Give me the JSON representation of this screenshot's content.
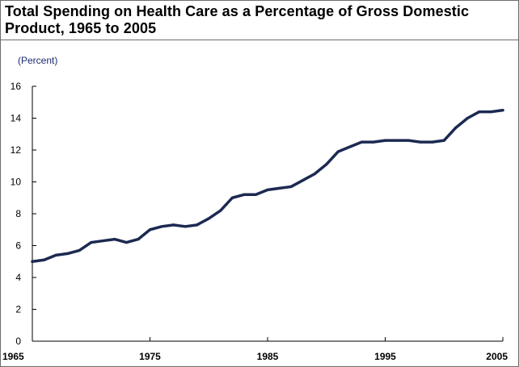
{
  "chart_data": {
    "type": "line",
    "title_lines": [
      "Total Spending on Health Care as a Percentage of Gross Domestic",
      "Product, 1965 to 2005"
    ],
    "unit_label": "(Percent)",
    "xlabel": "",
    "ylabel": "",
    "xlim": [
      1965,
      2005
    ],
    "ylim": [
      0,
      16
    ],
    "x_ticks": [
      1965,
      1975,
      1985,
      1995,
      2005
    ],
    "y_ticks": [
      0,
      2,
      4,
      6,
      8,
      10,
      12,
      14,
      16
    ],
    "grid": false,
    "legend": "none",
    "series": [
      {
        "color": "#1c2a52",
        "x": [
          1965,
          1966,
          1967,
          1968,
          1969,
          1970,
          1971,
          1972,
          1973,
          1974,
          1975,
          1976,
          1977,
          1978,
          1979,
          1980,
          1981,
          1982,
          1983,
          1984,
          1985,
          1986,
          1987,
          1988,
          1989,
          1990,
          1991,
          1992,
          1993,
          1994,
          1995,
          1996,
          1997,
          1998,
          1999,
          2000,
          2001,
          2002,
          2003,
          2004,
          2005
        ],
        "values": [
          5.0,
          5.1,
          5.4,
          5.5,
          5.7,
          6.2,
          6.3,
          6.4,
          6.2,
          6.4,
          7.0,
          7.2,
          7.3,
          7.2,
          7.3,
          7.7,
          8.2,
          9.0,
          9.2,
          9.2,
          9.5,
          9.6,
          9.7,
          10.1,
          10.5,
          11.1,
          11.9,
          12.2,
          12.5,
          12.5,
          12.6,
          12.6,
          12.6,
          12.5,
          12.5,
          12.6,
          13.4,
          14.0,
          14.4,
          14.4,
          14.5
        ]
      }
    ],
    "colors": {
      "axis": "#000000",
      "title_text": "#000000",
      "unit_label": "#1c2a70"
    }
  }
}
